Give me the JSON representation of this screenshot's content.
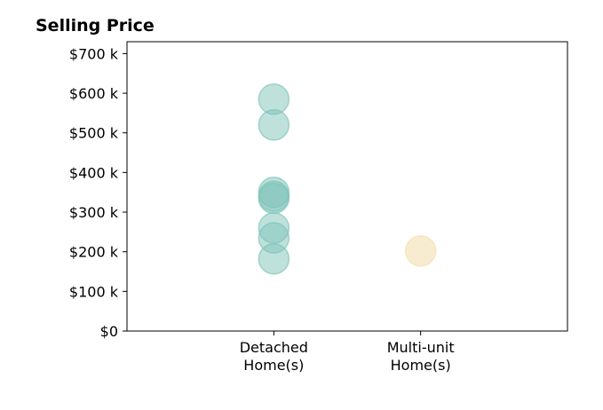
{
  "chart_data": {
    "type": "scatter",
    "title": "Selling Price",
    "xlabel": "",
    "ylabel": "",
    "categories": [
      "Detached\nHome(s)",
      "Multi-unit\nHome(s)"
    ],
    "category_positions": [
      1,
      2
    ],
    "xlim": [
      0,
      3
    ],
    "ylim": [
      0,
      730000
    ],
    "yticks": [
      0,
      100000,
      200000,
      300000,
      400000,
      500000,
      600000,
      700000
    ],
    "ytick_labels": [
      "$0",
      "$100 k",
      "$200 k",
      "$300 k",
      "$400 k",
      "$500 k",
      "$600 k",
      "$700 k"
    ],
    "grid": false,
    "legend": "none",
    "series": [
      {
        "category": "Detached\nHome(s)",
        "x": [
          1,
          1,
          1,
          1,
          1,
          1,
          1,
          1
        ],
        "y": [
          585000,
          520000,
          350000,
          335000,
          260000,
          235000,
          182000,
          340000
        ],
        "color": "#7fc4b9"
      },
      {
        "category": "Multi-unit\nHome(s)",
        "x": [
          2
        ],
        "y": [
          202000
        ],
        "color": "#f3dfb0"
      }
    ]
  }
}
